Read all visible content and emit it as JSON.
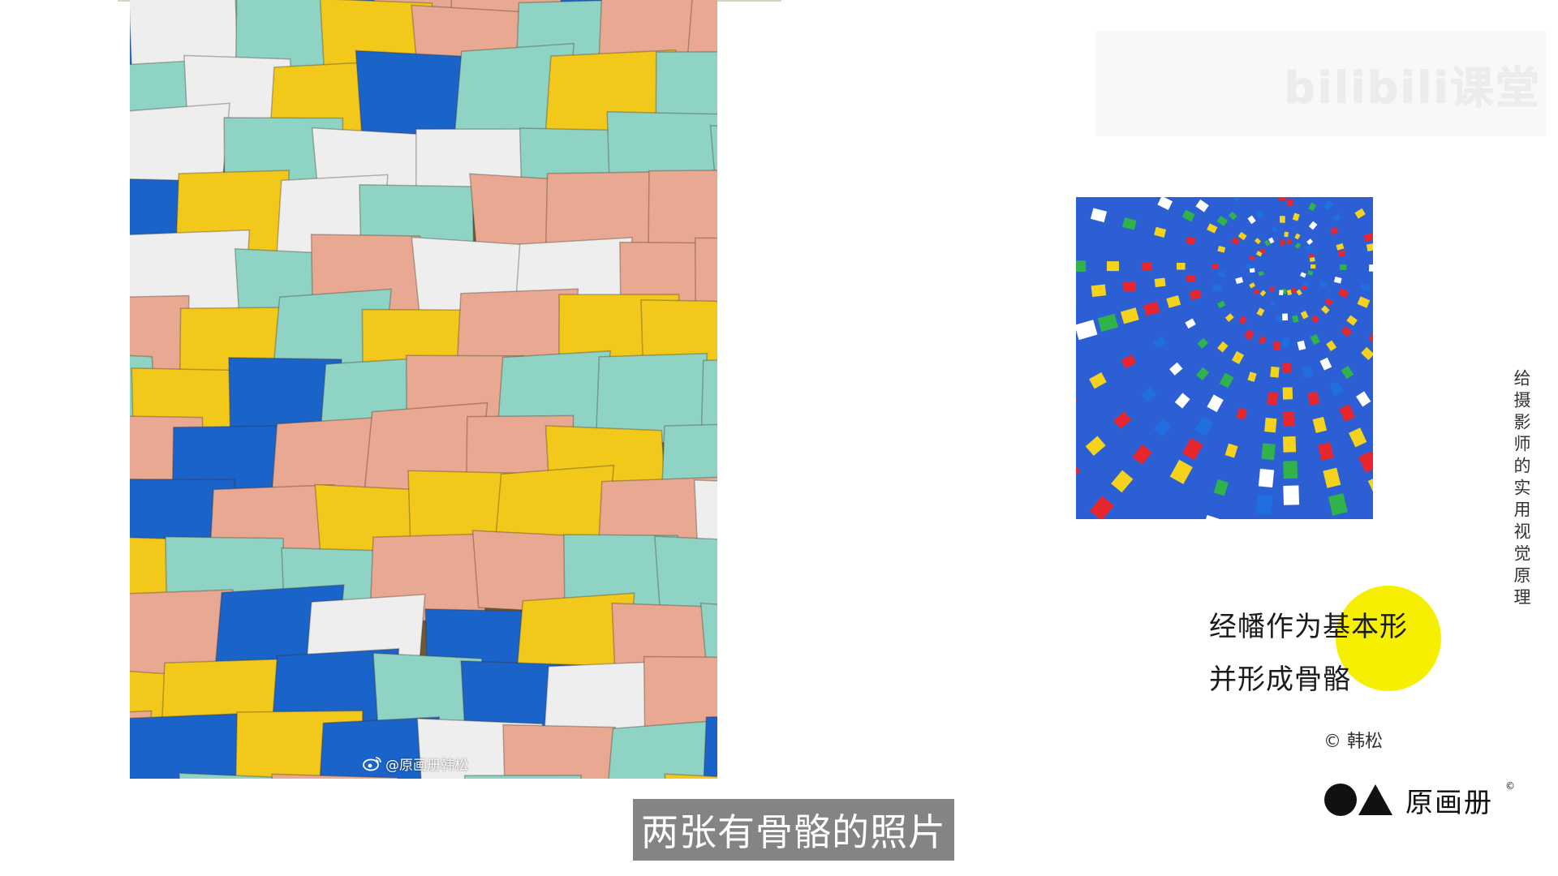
{
  "slide": {
    "left_photo_watermark": "@原画册韩松",
    "bilibili_logo_text": "bilibili课堂",
    "side_caption": "给摄影师的实用视觉原理",
    "caption_lines": [
      "经幡作为基本形",
      "并形成骨骼"
    ],
    "credit": "© 韩松",
    "brand_name": "原画册",
    "brand_copyright": "©",
    "subtitle": "两张有骨骼的照片"
  },
  "colors": {
    "highlight_dot": "#f6f000",
    "subtitle_bg": "#6e6e6e",
    "flag_yellow": "#f2c81a",
    "flag_blue": "#1a63c8",
    "flag_teal": "#8fd3c4",
    "flag_pink": "#e9a891",
    "flag_white": "#eeeeee"
  },
  "icons": {
    "weibo": "weibo-icon",
    "brand_circle": "circle-icon",
    "brand_triangle": "triangle-icon"
  }
}
